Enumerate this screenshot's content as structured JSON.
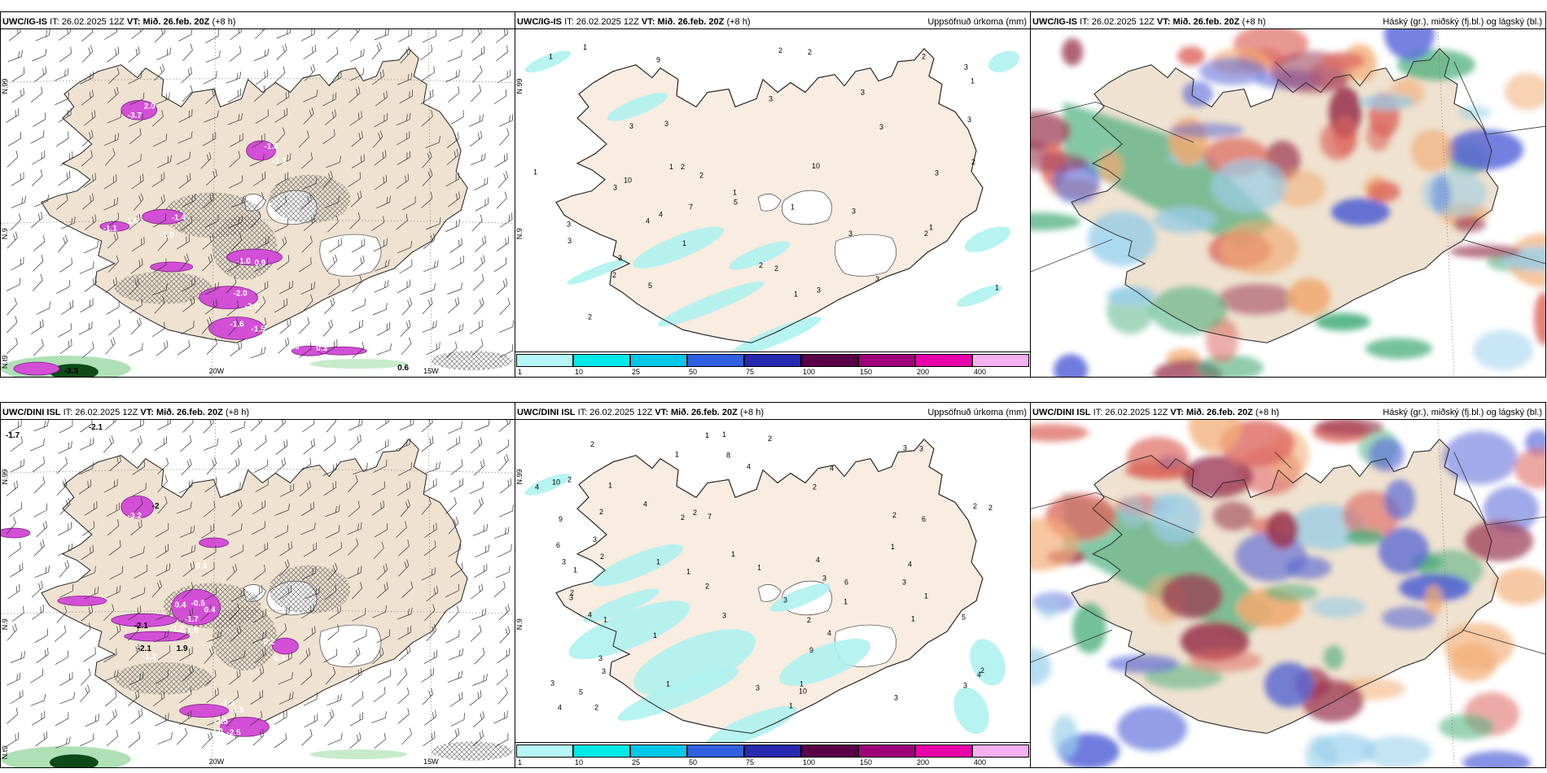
{
  "colors": {
    "land": "#efe2d0",
    "land_light": "#f9ece0",
    "sea": "#ffffff",
    "precip_light": "#aef2f0",
    "magenta": "#d34fd6",
    "cloud_blue": "#3c4fd3",
    "cloud_maroon": "#8c1a3a",
    "cloud_red": "#d9534a",
    "cloud_green": "#2fa36b",
    "colorbar": [
      "#b4f6f6",
      "#00e8e8",
      "#00c8e8",
      "#3060e0",
      "#2828b0",
      "#5a0048",
      "#a0007a",
      "#e800a8",
      "#f4b0f0"
    ]
  },
  "panels": [
    {
      "model": "UWC/IG-IS",
      "it_label": "IT:",
      "it": "26.02.2025 12Z",
      "vt_label": "VT:",
      "vt": "Mið. 26.feb. 20Z",
      "lead": "(+8 h)",
      "right_title": "",
      "type": "wind",
      "labels": [
        {
          "t": "2.0",
          "c": "#fff"
        },
        {
          "t": "-3.7",
          "c": "#fff"
        },
        {
          "t": "-1.6",
          "c": "#fff"
        },
        {
          "t": "-1.3",
          "c": "#fff"
        },
        {
          "t": "-1.4",
          "c": "#fff"
        },
        {
          "t": "-1.1",
          "c": "#fff"
        },
        {
          "t": "-1.6",
          "c": "#fff"
        },
        {
          "t": "-1.0",
          "c": "#fff"
        },
        {
          "t": "-1.0",
          "c": "#fff"
        },
        {
          "t": "0.9",
          "c": "#fff"
        },
        {
          "t": "-2.0",
          "c": "#fff"
        },
        {
          "t": "-2.0",
          "c": "#fff"
        },
        {
          "t": "-1.6",
          "c": "#fff"
        },
        {
          "t": "-1.5",
          "c": "#fff"
        },
        {
          "t": "-1.0",
          "c": "#fff"
        },
        {
          "t": "0.3",
          "c": "#fff"
        },
        {
          "t": "0.6",
          "c": "#000"
        },
        {
          "t": "-3.3",
          "c": "#000"
        }
      ],
      "axis": [
        "20W",
        "15W",
        "N.99",
        "N.9",
        "N.t9"
      ]
    },
    {
      "model": "UWC/IG-IS",
      "it_label": "IT:",
      "it": "26.02.2025 12Z",
      "vt_label": "VT:",
      "vt": "Mið. 26.feb. 20Z",
      "lead": "(+8 h)",
      "right_title": "Uppsöfnuð úrkoma (mm)",
      "type": "precip",
      "labels": [
        "10",
        "1",
        "3",
        "4",
        "3",
        "5",
        "3",
        "10",
        "3",
        "1",
        "2",
        "2",
        "9",
        "3",
        "2",
        "2",
        "2",
        "2",
        "1",
        "1",
        "4",
        "3",
        "3",
        "3",
        "3",
        "3",
        "3",
        "3",
        "2",
        "1",
        "1",
        "2",
        "3",
        "3",
        "3",
        "3",
        "2",
        "2",
        "1",
        "5",
        "7",
        "1",
        "1",
        "2",
        "1",
        "1"
      ],
      "axis": [
        "N.99",
        "N.9"
      ],
      "colorbar_ticks": [
        "1",
        "10",
        "25",
        "50",
        "75",
        "100",
        "150",
        "200",
        "400"
      ]
    },
    {
      "model": "UWC/IG-IS",
      "it_label": "IT:",
      "it": "26.02.2025 12Z",
      "vt_label": "VT:",
      "vt": "Mið. 26.feb. 20Z",
      "lead": "(+8 h)",
      "right_title": "Háský (gr.), miðský (fj.bl.) og lágský (bl.)",
      "type": "cloud"
    },
    {
      "model": "UWC/DINI ISL",
      "it_label": "IT:",
      "it": "26.02.2025 12Z",
      "vt_label": "VT:",
      "vt": "Mið. 26.feb. 20Z",
      "lead": "(+8 h)",
      "right_title": "",
      "type": "wind",
      "labels": [
        {
          "t": "-2.1",
          "c": "#000"
        },
        {
          "t": "-1.7",
          "c": "#000"
        },
        {
          "t": "-2",
          "c": "#000"
        },
        {
          "t": "-3.2",
          "c": "#fff"
        },
        {
          "t": "0.3",
          "c": "#fff"
        },
        {
          "t": "0.4",
          "c": "#fff"
        },
        {
          "t": "-0.5",
          "c": "#fff"
        },
        {
          "t": "0.4",
          "c": "#fff"
        },
        {
          "t": "-1.7",
          "c": "#fff"
        },
        {
          "t": "-2.1",
          "c": "#000"
        },
        {
          "t": "-1.2",
          "c": "#fff"
        },
        {
          "t": "-1.6",
          "c": "#fff"
        },
        {
          "t": "-2.1",
          "c": "#000"
        },
        {
          "t": "1.9",
          "c": "#000"
        },
        {
          "t": "-1.3",
          "c": "#fff"
        },
        {
          "t": "-0.2",
          "c": "#fff"
        },
        {
          "t": "0.3",
          "c": "#fff"
        },
        {
          "t": "-1.3",
          "c": "#fff"
        },
        {
          "t": "-1.5",
          "c": "#fff"
        },
        {
          "t": "-2.5",
          "c": "#fff"
        },
        {
          "t": "-2.0",
          "c": "#fff"
        },
        {
          "t": "-2.5",
          "c": "#fff"
        }
      ],
      "axis": [
        "20W",
        "15W",
        "N.99",
        "N.9",
        "N.t9"
      ]
    },
    {
      "model": "UWC/DINI ISL",
      "it_label": "IT:",
      "it": "26.02.2025 12Z",
      "vt_label": "VT:",
      "vt": "Mið. 26.feb. 20Z",
      "lead": "(+8 h)",
      "right_title": "Uppsöfnuð úrkoma (mm)",
      "type": "precip",
      "labels": [
        "6",
        "2",
        "4",
        "2",
        "4",
        "10",
        "10",
        "1",
        "2",
        "9",
        "2",
        "3",
        "1",
        "4",
        "1",
        "3",
        "2",
        "4",
        "3",
        "1",
        "2",
        "9",
        "5",
        "3",
        "1",
        "3",
        "8",
        "6",
        "4",
        "2",
        "1",
        "7",
        "6",
        "3",
        "5",
        "4",
        "2",
        "2",
        "1",
        "2",
        "1",
        "1",
        "1",
        "2",
        "2",
        "3",
        "1",
        "1",
        "1",
        "3",
        "1",
        "2",
        "1",
        "4",
        "2",
        "4",
        "3",
        "4",
        "3",
        "4",
        "1",
        "2",
        "3",
        "3",
        "3",
        "3",
        "2",
        "3",
        "1",
        "1"
      ],
      "axis": [
        "N.99",
        "N.9"
      ],
      "colorbar_ticks": [
        "1",
        "10",
        "25",
        "50",
        "75",
        "100",
        "150",
        "200",
        "400"
      ]
    },
    {
      "model": "UWC/DINI ISL",
      "it_label": "IT:",
      "it": "26.02.2025 12Z",
      "vt_label": "VT:",
      "vt": "Mið. 26.feb. 20Z",
      "lead": "(+8 h)",
      "right_title": "Háský (gr.), miðský (fj.bl.) og lágský (bl.)",
      "type": "cloud"
    }
  ]
}
